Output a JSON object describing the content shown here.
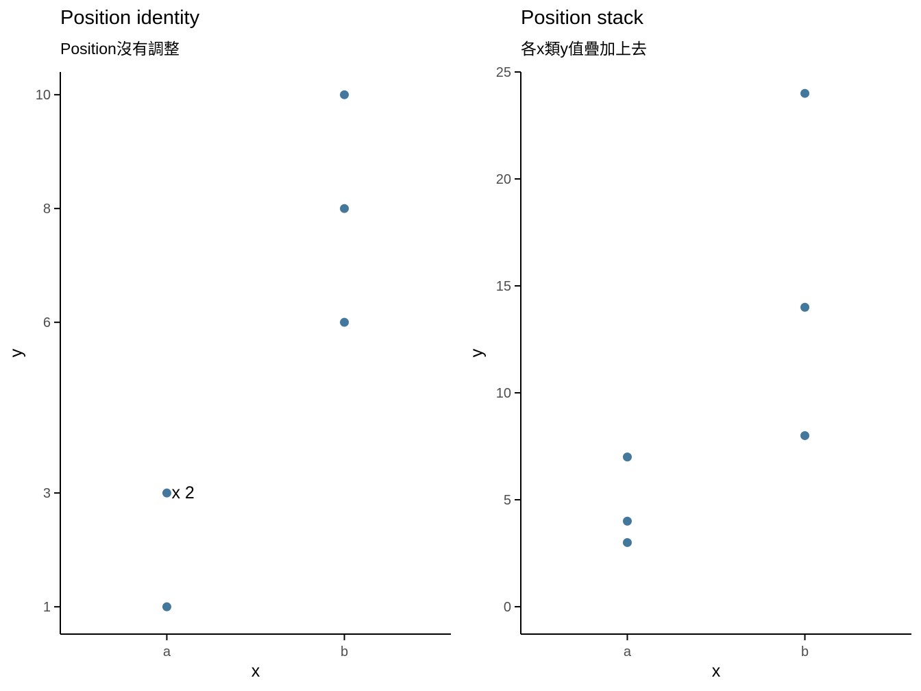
{
  "style": {
    "background": "#ffffff",
    "axis_line_color": "#000000",
    "axis_text_color": "#4d4d4d",
    "title_color": "#000000",
    "point_color": "#43789c"
  },
  "chart_data": [
    {
      "type": "scatter",
      "title": "Position identity",
      "subtitle": "Position沒有調整",
      "xlabel": "x",
      "ylabel": "y",
      "categories": [
        "a",
        "b"
      ],
      "y_breaks": [
        1,
        3,
        6,
        8,
        10
      ],
      "ylim": [
        0.52,
        10.4
      ],
      "grid": false,
      "legend": "none",
      "point_color": "#43789c",
      "points": [
        {
          "x": "a",
          "y": 1
        },
        {
          "x": "a",
          "y": 3,
          "label": "x 2"
        },
        {
          "x": "b",
          "y": 6
        },
        {
          "x": "b",
          "y": 8
        },
        {
          "x": "b",
          "y": 10
        }
      ]
    },
    {
      "type": "scatter",
      "title": "Position stack",
      "subtitle": "各x類y值疊加上去",
      "xlabel": "x",
      "ylabel": "y",
      "categories": [
        "a",
        "b"
      ],
      "y_breaks": [
        0,
        5,
        10,
        15,
        20,
        25
      ],
      "ylim": [
        -1.28,
        25.0
      ],
      "grid": false,
      "legend": "none",
      "point_color": "#43789c",
      "points": [
        {
          "x": "a",
          "y": 3
        },
        {
          "x": "a",
          "y": 4
        },
        {
          "x": "a",
          "y": 7
        },
        {
          "x": "b",
          "y": 8
        },
        {
          "x": "b",
          "y": 14
        },
        {
          "x": "b",
          "y": 24
        }
      ]
    }
  ]
}
